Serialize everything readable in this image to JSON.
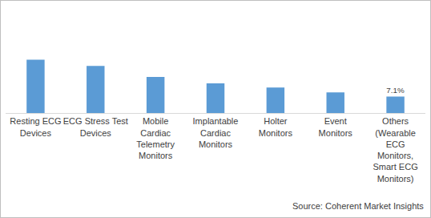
{
  "chart_data": {
    "type": "bar",
    "categories": [
      "Resting ECG\nDevices",
      "ECG Stress Test\nDevices",
      "Mobile\nCardiac\nTelemetry\nMonitors",
      "Implantable\nCardiac\nMonitors",
      "Holter\nMonitors",
      "Event\nMonitors",
      "Others\n(Wearable\nECG\nMonitors,\nSmart ECG\nMonitors)"
    ],
    "values": [
      23,
      20.3,
      15.6,
      12.8,
      11,
      8.9,
      7.1
    ],
    "value_labels": [
      null,
      null,
      null,
      null,
      null,
      null,
      "7.1%"
    ],
    "data_labels": true,
    "color": "#5b9bd5",
    "grid": false,
    "tick_labels": "x",
    "annotations": [
      "Source: Coherent Market Insights"
    ]
  }
}
